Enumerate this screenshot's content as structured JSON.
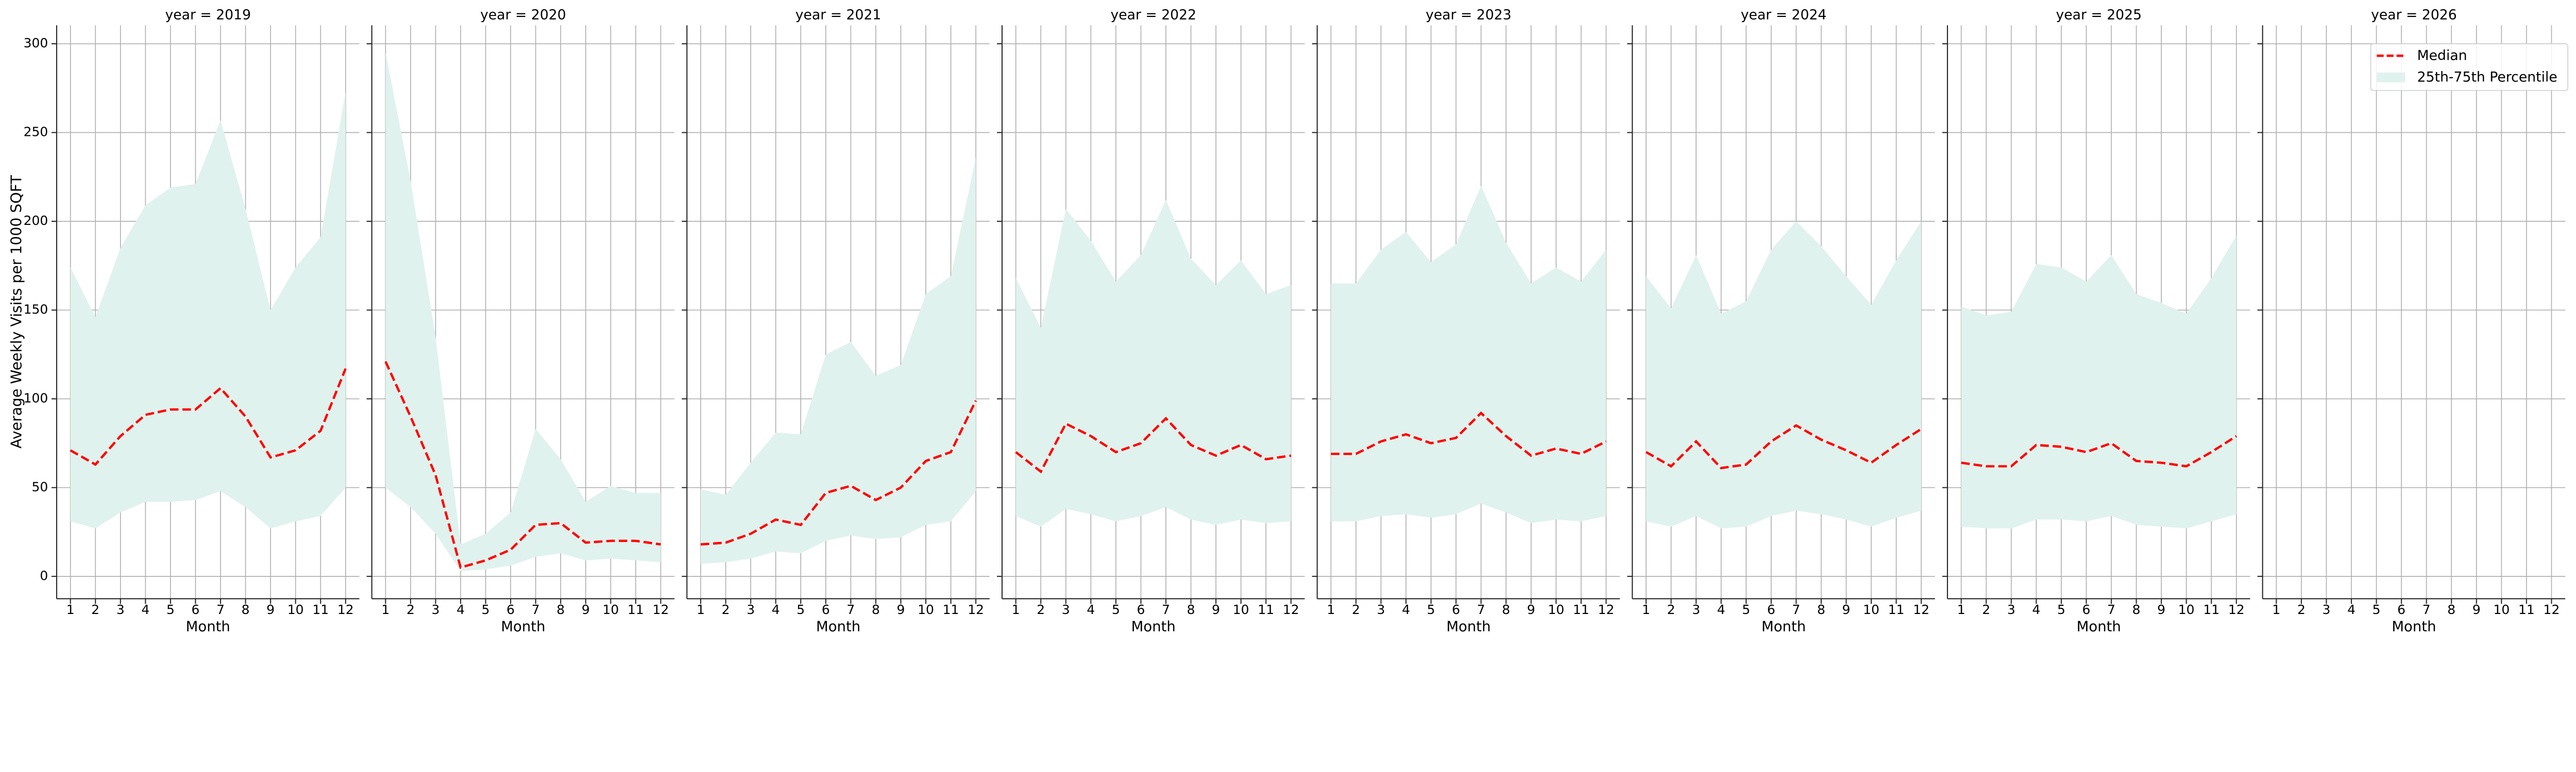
{
  "chart_data": {
    "type": "line",
    "layout": "facet-grid",
    "ylabel": "Average Weekly Visits per 1000 SQFT",
    "xlabel": "Month",
    "ylim": [
      -12.6,
      310.4
    ],
    "xlim": [
      0.45,
      12.55
    ],
    "yticks": [
      0,
      50,
      100,
      150,
      200,
      250,
      300
    ],
    "xticks": [
      1,
      2,
      3,
      4,
      5,
      6,
      7,
      8,
      9,
      10,
      11,
      12
    ],
    "grid": true,
    "legend": {
      "placement": "top-right",
      "entries": [
        {
          "label": "Median",
          "style": "dashed-line"
        },
        {
          "label": "25th-75th Percentile",
          "style": "filled-band"
        }
      ]
    },
    "colors": {
      "median": "#ff0000",
      "band": "#e0f2ed",
      "grid": "#b0b0b0",
      "axis": "#262626"
    },
    "facets": [
      {
        "title": "year = 2019",
        "median": [
          71,
          63,
          79,
          91,
          94,
          94,
          106,
          90,
          67,
          71,
          82,
          117
        ],
        "p25": [
          31,
          27,
          36,
          42,
          42,
          43,
          48,
          39,
          27,
          31,
          34,
          50
        ],
        "p75": [
          174,
          146,
          185,
          209,
          219,
          221,
          257,
          207,
          150,
          174,
          191,
          273
        ]
      },
      {
        "title": "year = 2020",
        "median": [
          121,
          90,
          57,
          5,
          9,
          15,
          29,
          30,
          19,
          20,
          20,
          18
        ],
        "p25": [
          50,
          39,
          24,
          3,
          4,
          6,
          11,
          13,
          9,
          10,
          9,
          8
        ],
        "p75": [
          295,
          223,
          135,
          18,
          24,
          36,
          83,
          66,
          42,
          51,
          47,
          47
        ]
      },
      {
        "title": "year = 2021",
        "median": [
          18,
          19,
          24,
          32,
          29,
          47,
          51,
          43,
          50,
          65,
          70,
          99
        ],
        "p25": [
          7,
          8,
          10,
          14,
          13,
          20,
          23,
          21,
          22,
          29,
          31,
          48
        ],
        "p75": [
          49,
          46,
          64,
          81,
          80,
          125,
          132,
          113,
          119,
          159,
          169,
          236
        ]
      },
      {
        "title": "year = 2022",
        "median": [
          70,
          59,
          86,
          79,
          70,
          75,
          89,
          74,
          68,
          74,
          66,
          68
        ],
        "p25": [
          34,
          28,
          38,
          35,
          31,
          34,
          39,
          32,
          29,
          32,
          30,
          31
        ],
        "p75": [
          168,
          140,
          207,
          189,
          166,
          181,
          212,
          179,
          164,
          178,
          159,
          164
        ]
      },
      {
        "title": "year = 2023",
        "median": [
          69,
          69,
          76,
          80,
          75,
          78,
          92,
          79,
          68,
          72,
          69,
          76
        ],
        "p25": [
          31,
          31,
          34,
          35,
          33,
          35,
          41,
          36,
          30,
          32,
          31,
          34
        ],
        "p75": [
          165,
          165,
          184,
          194,
          177,
          187,
          220,
          188,
          165,
          174,
          166,
          184
        ]
      },
      {
        "title": "year = 2024",
        "median": [
          70,
          62,
          76,
          61,
          63,
          76,
          85,
          77,
          71,
          64,
          74,
          83
        ],
        "p25": [
          31,
          28,
          34,
          27,
          28,
          34,
          37,
          35,
          32,
          28,
          33,
          37
        ],
        "p75": [
          169,
          151,
          181,
          148,
          155,
          184,
          200,
          186,
          169,
          153,
          178,
          200
        ]
      },
      {
        "title": "year = 2025",
        "median": [
          64,
          62,
          62,
          74,
          73,
          70,
          75,
          65,
          64,
          62,
          70,
          79
        ],
        "p25": [
          28,
          27,
          27,
          32,
          32,
          31,
          34,
          29,
          28,
          27,
          31,
          35
        ],
        "p75": [
          152,
          147,
          149,
          176,
          174,
          166,
          181,
          159,
          154,
          148,
          168,
          192
        ]
      },
      {
        "title": "year = 2026",
        "median": [],
        "p25": [],
        "p75": []
      }
    ]
  }
}
